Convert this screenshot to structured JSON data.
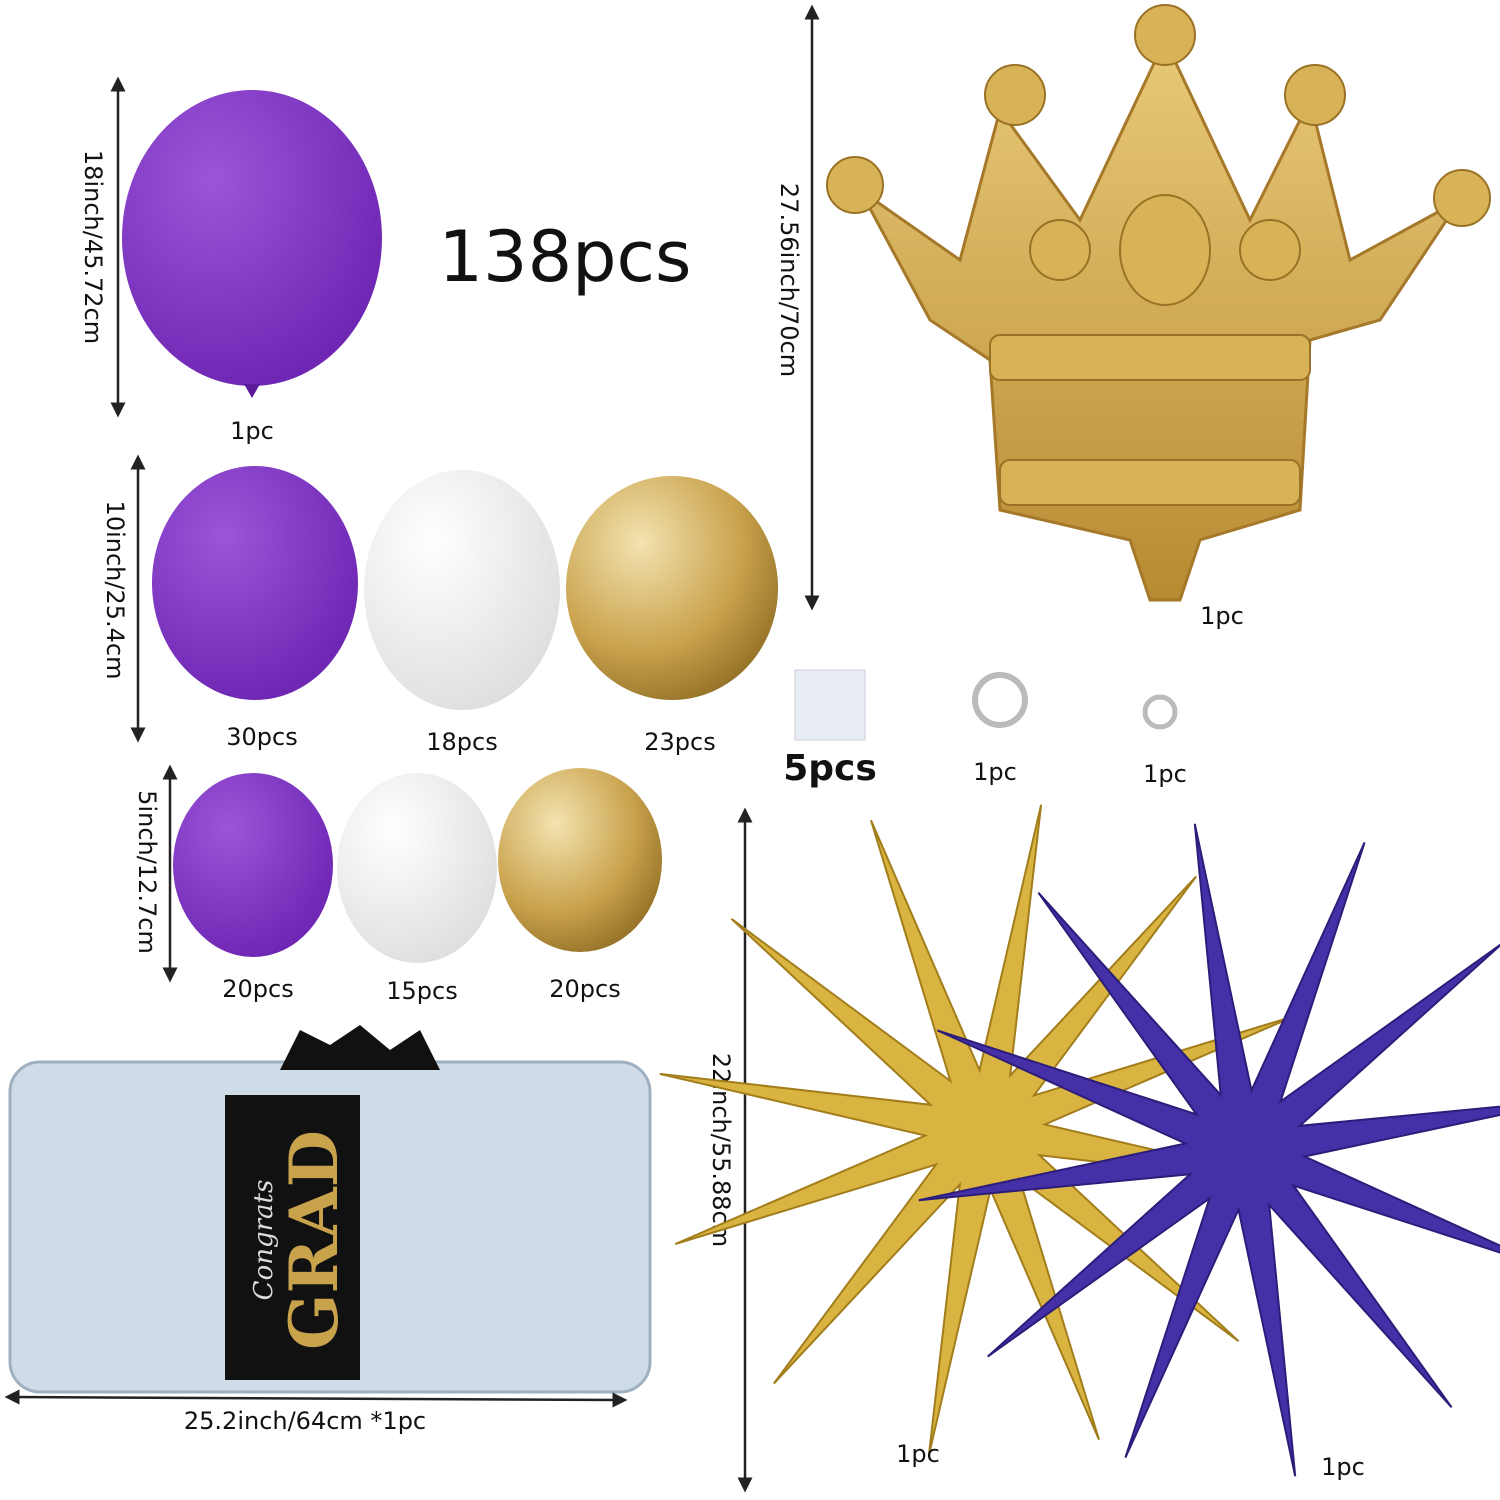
{
  "total": "138pcs",
  "large_balloon": {
    "size": "18inch/45.72cm",
    "count": "1pc"
  },
  "medium_balloons": {
    "size": "10inch/25.4cm",
    "counts": [
      "30pcs",
      "18pcs",
      "23pcs"
    ]
  },
  "small_balloons": {
    "size": "5inch/12.7cm",
    "counts": [
      "20pcs",
      "15pcs",
      "20pcs"
    ]
  },
  "crown": {
    "size": "27.56inch/70cm",
    "count": "1pc"
  },
  "accessories": [
    "5pcs",
    "1pc",
    "1pc"
  ],
  "stars": {
    "size": "22inch/55.88cm",
    "counts": [
      "1pc",
      "1pc"
    ]
  },
  "scroll": {
    "size": "25.2inch/64cm *1pc",
    "script": "Congrats",
    "word": "GRAD"
  }
}
